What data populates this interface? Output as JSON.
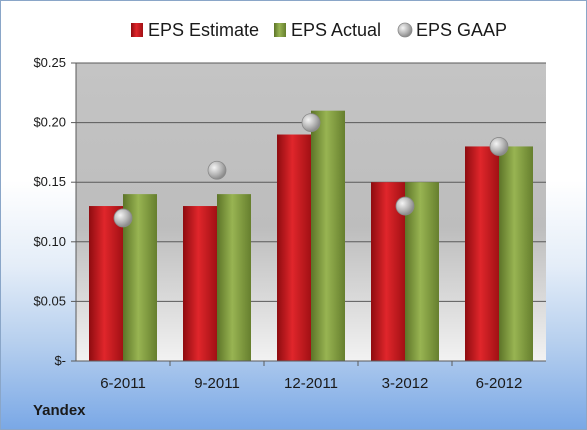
{
  "company": "Yandex",
  "colors": {
    "estimate": "#c8171c",
    "actual": "#7e9a3c",
    "gaap": "#a8a8a8",
    "plot_bg": "#c8c8c8"
  },
  "chart_data": {
    "type": "bar",
    "title": "",
    "xlabel": "",
    "ylabel": "",
    "categories": [
      "6-2011",
      "9-2011",
      "12-2011",
      "3-2012",
      "6-2012"
    ],
    "series": [
      {
        "name": "EPS Estimate",
        "type": "bar",
        "values": [
          0.13,
          0.13,
          0.19,
          0.15,
          0.18
        ]
      },
      {
        "name": "EPS Actual",
        "type": "bar",
        "values": [
          0.14,
          0.14,
          0.21,
          0.15,
          0.18
        ]
      },
      {
        "name": "EPS GAAP",
        "type": "scatter",
        "values": [
          0.12,
          0.16,
          0.2,
          0.13,
          0.18
        ]
      }
    ],
    "ylim": [
      0,
      0.25
    ],
    "yticks": [
      0,
      0.05,
      0.1,
      0.15,
      0.2,
      0.25
    ],
    "ytick_labels": [
      "$-",
      "$0.05",
      "$0.10",
      "$0.15",
      "$0.20",
      "$0.25"
    ],
    "grid": true,
    "legend": "top"
  }
}
